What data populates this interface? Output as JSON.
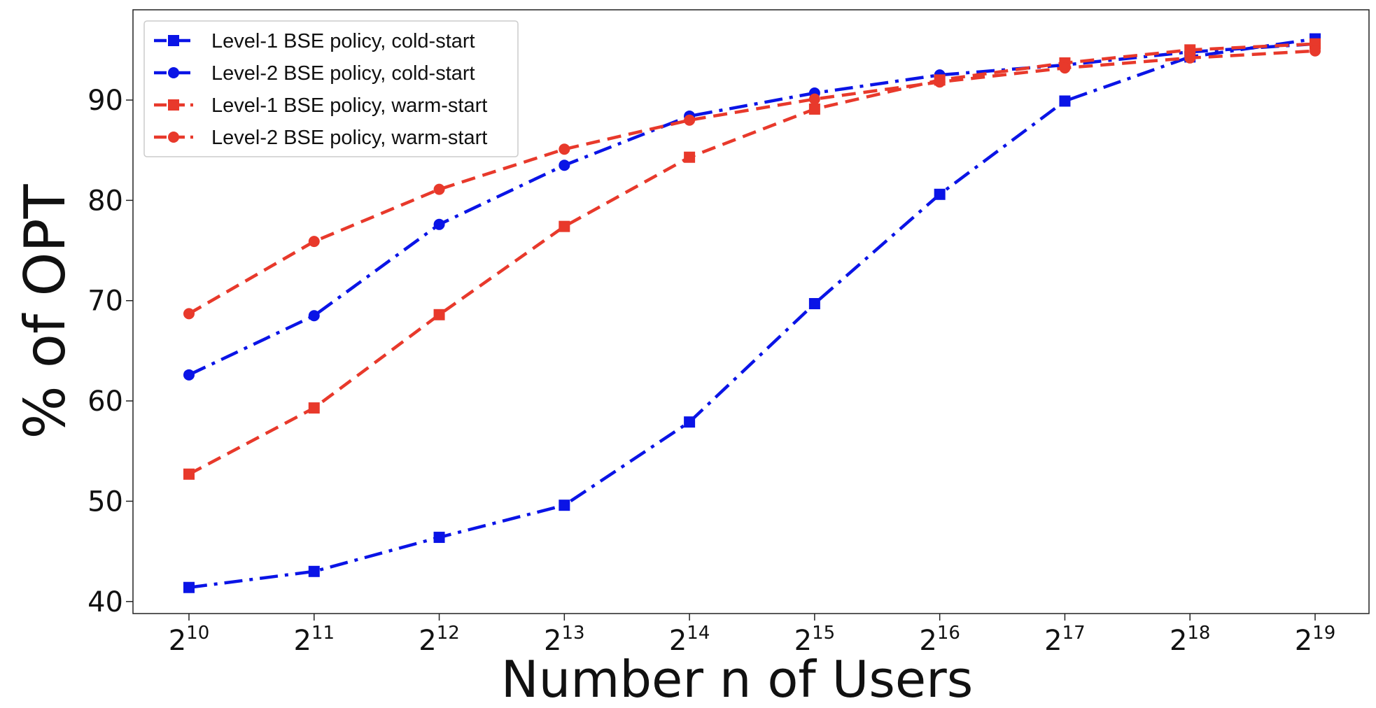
{
  "chart_data": {
    "type": "line",
    "title": "",
    "xlabel": "Number n of Users",
    "ylabel": "% of OPT",
    "x_base": "2",
    "x_exponents": [
      "10",
      "11",
      "12",
      "13",
      "14",
      "15",
      "16",
      "17",
      "18",
      "19"
    ],
    "yticks": [
      "40",
      "50",
      "60",
      "70",
      "80",
      "90"
    ],
    "ylim": [
      38.8,
      99
    ],
    "grid": false,
    "legend_position": "top-left",
    "series": [
      {
        "name": "Level-1 BSE policy, cold-start",
        "color": "#0a14e6",
        "linestyle": "dashdot",
        "marker": "square",
        "values": [
          41.4,
          43.0,
          46.4,
          49.6,
          57.9,
          69.7,
          80.6,
          89.9,
          94.3,
          96.1
        ]
      },
      {
        "name": "Level-2 BSE policy, cold-start",
        "color": "#0a14e6",
        "linestyle": "dashdot",
        "marker": "circle",
        "values": [
          62.6,
          68.5,
          77.6,
          83.5,
          88.4,
          90.7,
          92.5,
          93.5,
          94.8,
          95.6
        ]
      },
      {
        "name": "Level-1 BSE policy, warm-start",
        "color": "#e8392b",
        "linestyle": "dashed",
        "marker": "square",
        "values": [
          52.7,
          59.3,
          68.6,
          77.4,
          84.3,
          89.1,
          92.0,
          93.7,
          95.0,
          95.6
        ]
      },
      {
        "name": "Level-2 BSE policy, warm-start",
        "color": "#e8392b",
        "linestyle": "dashed",
        "marker": "circle",
        "values": [
          68.7,
          75.9,
          81.1,
          85.1,
          88.0,
          90.1,
          91.8,
          93.2,
          94.2,
          94.9
        ]
      }
    ]
  }
}
